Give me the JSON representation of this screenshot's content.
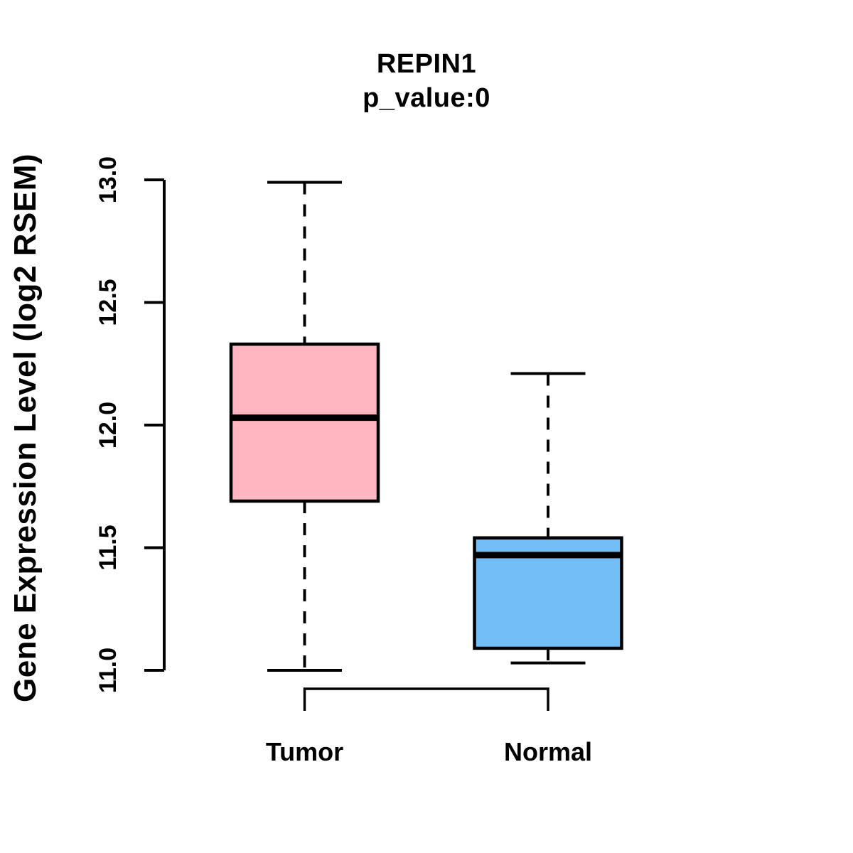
{
  "figure": {
    "background": "#FFFFFF",
    "foreground": "#000000"
  },
  "chart_data": {
    "type": "boxplot",
    "title": "REPIN1",
    "subtitle": "p_value:0",
    "p_value": "0",
    "ylabel": "Gene Expression Level (log2 RSEM)",
    "ylim": [
      11.0,
      13.0
    ],
    "yticks": [
      11.0,
      11.5,
      12.0,
      12.5,
      13.0
    ],
    "ytick_labels": [
      "11.0",
      "11.5",
      "12.0",
      "12.5",
      "13.0"
    ],
    "categories": [
      "Tumor",
      "Normal"
    ],
    "series": [
      {
        "name": "Tumor",
        "color": "#FFB6C1",
        "whisker_low": 11.0,
        "q1": 11.69,
        "median": 12.03,
        "q3": 12.33,
        "whisker_high": 12.99
      },
      {
        "name": "Normal",
        "color": "#74BEF7",
        "whisker_low": 11.03,
        "q1": 11.09,
        "median": 11.47,
        "q3": 11.54,
        "whisker_high": 12.21
      }
    ],
    "colors": {
      "foreground": "#000000",
      "tumor_fill": "#FFB6C1",
      "normal_fill": "#74BEF7"
    },
    "legend": "none",
    "grid": false,
    "whisker_style": "dashed",
    "comparison_bracket": {
      "between": [
        "Tumor",
        "Normal"
      ]
    }
  }
}
